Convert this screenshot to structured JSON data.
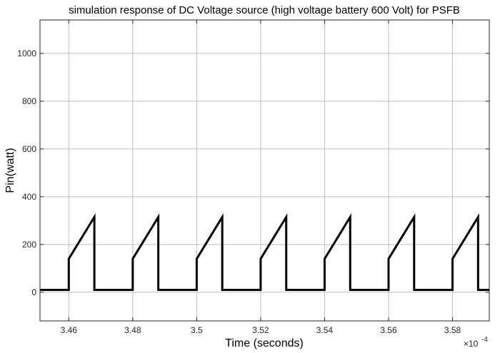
{
  "chart_data": {
    "type": "line",
    "title": "simulation response of DC Voltage source (high voltage battery  600 Volt) for PSFB",
    "xlabel": "Time (seconds)",
    "ylabel": "Pin(watt)",
    "x_exponent_label": "×10",
    "x_exponent_power": "-4",
    "xlim": [
      3.451,
      3.5915
    ],
    "ylim": [
      -120,
      1140
    ],
    "xticks": [
      3.46,
      3.48,
      3.5,
      3.52,
      3.54,
      3.56,
      3.58
    ],
    "xtick_labels": [
      "3.46",
      "3.48",
      "3.5",
      "3.52",
      "3.54",
      "3.56",
      "3.58"
    ],
    "yticks": [
      0,
      200,
      400,
      600,
      800,
      1000
    ],
    "ytick_labels": [
      "0",
      "200",
      "400",
      "600",
      "800",
      "1000"
    ],
    "grid": true,
    "series": [
      {
        "color": "#000000",
        "x": [
          3.451,
          3.46,
          3.46,
          3.468,
          3.468,
          3.48,
          3.48,
          3.488,
          3.488,
          3.5,
          3.5,
          3.508,
          3.508,
          3.52,
          3.52,
          3.528,
          3.528,
          3.54,
          3.54,
          3.548,
          3.548,
          3.56,
          3.56,
          3.568,
          3.568,
          3.58,
          3.58,
          3.588,
          3.588,
          3.5915
        ],
        "y": [
          10,
          10,
          140,
          315,
          10,
          10,
          140,
          315,
          10,
          10,
          140,
          315,
          10,
          10,
          140,
          315,
          10,
          10,
          140,
          315,
          10,
          10,
          140,
          315,
          10,
          10,
          140,
          315,
          10,
          10
        ]
      }
    ]
  }
}
